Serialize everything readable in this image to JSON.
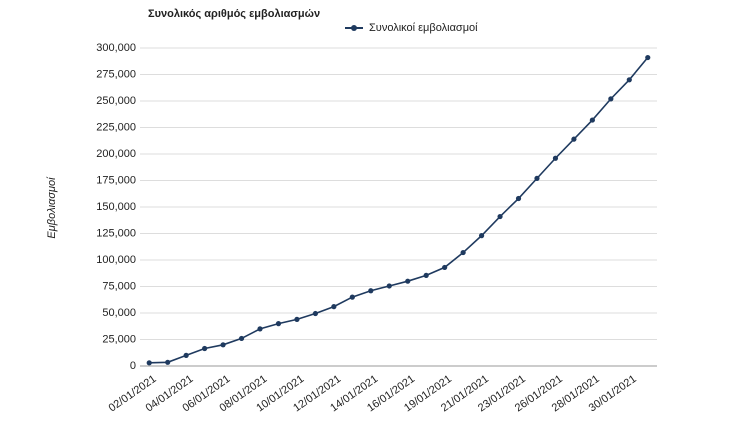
{
  "chart_data": {
    "type": "line",
    "title": "Συνολικός αριθμός εμβολιασμών",
    "y_label": "Εμβολιασμοί",
    "categories": [
      "02/01/2021",
      null,
      "04/01/2021",
      null,
      "06/01/2021",
      null,
      "08/01/2021",
      null,
      "10/01/2021",
      null,
      "12/01/2021",
      null,
      "14/01/2021",
      null,
      "16/01/2021",
      null,
      "19/01/2021",
      null,
      "21/01/2021",
      null,
      "23/01/2021",
      null,
      "26/01/2021",
      null,
      "28/01/2021",
      null,
      "30/01/2021",
      null
    ],
    "series": [
      {
        "name": "Συνολικοί εμβολιασμοί",
        "color": "#1f3a5f",
        "values": [
          3000,
          3500,
          10000,
          16500,
          20000,
          26000,
          35000,
          40000,
          44000,
          49500,
          56000,
          65000,
          71000,
          75500,
          80000,
          85500,
          93000,
          107000,
          123000,
          141000,
          158000,
          177000,
          196000,
          214000,
          232000,
          252000,
          270000,
          291000
        ]
      }
    ],
    "ylim": [
      0,
      300000
    ],
    "yticks": [
      {
        "value": 0,
        "label": "0"
      },
      {
        "value": 25000,
        "label": "25,000"
      },
      {
        "value": 50000,
        "label": "50,000"
      },
      {
        "value": 75000,
        "label": "75,000"
      },
      {
        "value": 100000,
        "label": "100,000"
      },
      {
        "value": 125000,
        "label": "125,000"
      },
      {
        "value": 150000,
        "label": "150,000"
      },
      {
        "value": 175000,
        "label": "175,000"
      },
      {
        "value": 200000,
        "label": "200,000"
      },
      {
        "value": 225000,
        "label": "225,000"
      },
      {
        "value": 250000,
        "label": "250,000"
      },
      {
        "value": 275000,
        "label": "275,000"
      },
      {
        "value": 300000,
        "label": "300,000"
      }
    ],
    "grid": true,
    "legend": "top"
  }
}
